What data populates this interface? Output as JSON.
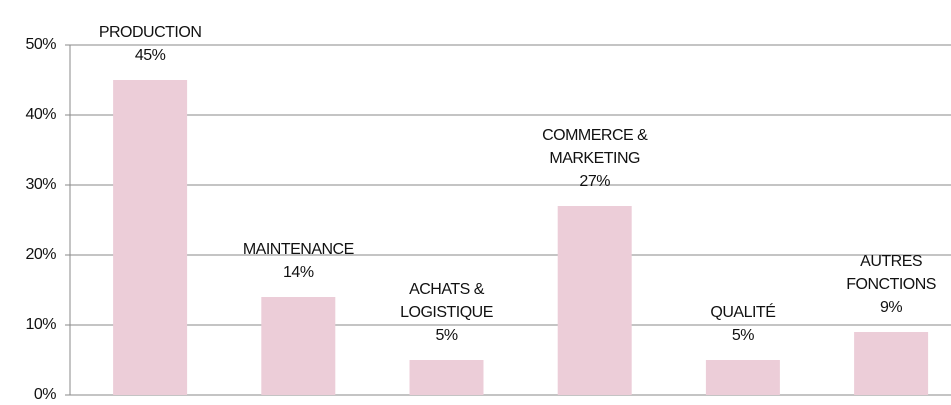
{
  "chart_data": {
    "type": "bar",
    "categories": [
      [
        "PRODUCTION"
      ],
      [
        "MAINTENANCE"
      ],
      [
        "ACHATS &",
        "LOGISTIQUE"
      ],
      [
        "COMMERCE &",
        "MARKETING"
      ],
      [
        "QUALITÉ"
      ],
      [
        "AUTRES",
        "FONCTIONS"
      ]
    ],
    "values": [
      45,
      14,
      5,
      27,
      5,
      9
    ],
    "value_labels": [
      "45%",
      "14%",
      "5%",
      "27%",
      "5%",
      "9%"
    ],
    "color": "#eccdd8",
    "ylim": [
      0,
      50
    ],
    "yticks": [
      {
        "value": 0,
        "label": "0%"
      },
      {
        "value": 10,
        "label": "10%"
      },
      {
        "value": 20,
        "label": "20%"
      },
      {
        "value": 30,
        "label": "30%"
      },
      {
        "value": 40,
        "label": "40%"
      },
      {
        "value": 50,
        "label": "50%"
      }
    ],
    "grid": true
  }
}
